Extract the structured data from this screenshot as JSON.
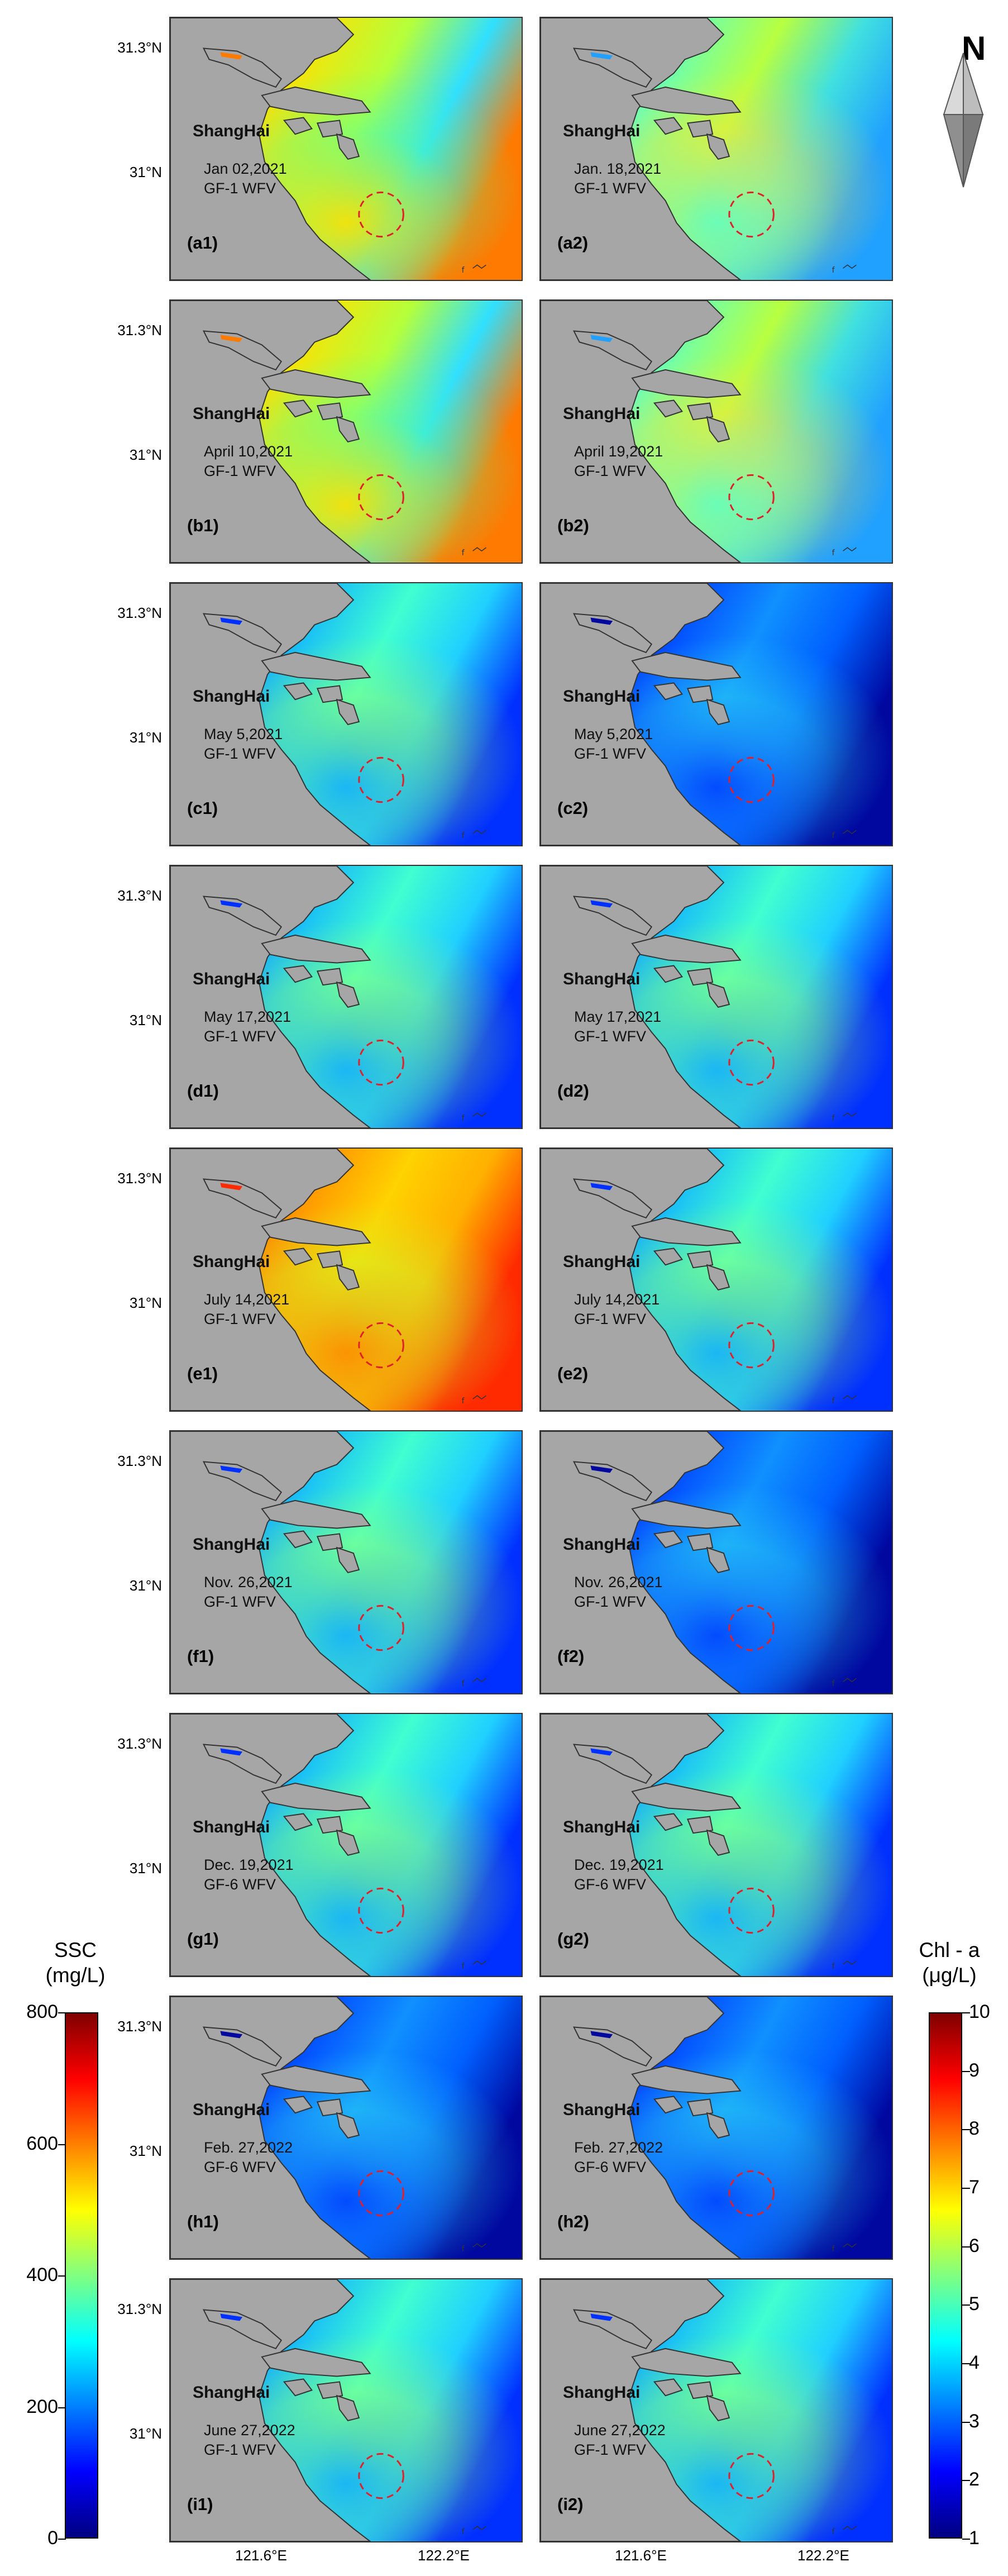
{
  "city_label": "ShangHai",
  "north_label": "N",
  "lat_labels": [
    "31.3°N",
    "31°N"
  ],
  "lon_labels": [
    "121.6°E",
    "122.2°E"
  ],
  "panels": [
    {
      "id": "a1",
      "label": "(a1)",
      "date": "Jan 02,2021",
      "sensor": "GF-1 WFV",
      "palette": "high"
    },
    {
      "id": "a2",
      "label": "(a2)",
      "date": "Jan. 18,2021",
      "sensor": "GF-1 WFV",
      "palette": "mid"
    },
    {
      "id": "b1",
      "label": "(b1)",
      "date": "April 10,2021",
      "sensor": "GF-1 WFV",
      "palette": "high"
    },
    {
      "id": "b2",
      "label": "(b2)",
      "date": "April 19,2021",
      "sensor": "GF-1 WFV",
      "palette": "mid"
    },
    {
      "id": "c1",
      "label": "(c1)",
      "date": "May 5,2021",
      "sensor": "GF-1 WFV",
      "palette": "low"
    },
    {
      "id": "c2",
      "label": "(c2)",
      "date": "May 5,2021",
      "sensor": "GF-1 WFV",
      "palette": "verylow"
    },
    {
      "id": "d1",
      "label": "(d1)",
      "date": "May 17,2021",
      "sensor": "GF-1 WFV",
      "palette": "low"
    },
    {
      "id": "d2",
      "label": "(d2)",
      "date": "May 17,2021",
      "sensor": "GF-1 WFV",
      "palette": "low"
    },
    {
      "id": "e1",
      "label": "(e1)",
      "date": "July 14,2021",
      "sensor": "GF-1 WFV",
      "palette": "veryhigh"
    },
    {
      "id": "e2",
      "label": "(e2)",
      "date": "July 14,2021",
      "sensor": "GF-1 WFV",
      "palette": "low"
    },
    {
      "id": "f1",
      "label": "(f1)",
      "date": "Nov. 26,2021",
      "sensor": "GF-1 WFV",
      "palette": "low"
    },
    {
      "id": "f2",
      "label": "(f2)",
      "date": "Nov. 26,2021",
      "sensor": "GF-1 WFV",
      "palette": "verylow"
    },
    {
      "id": "g1",
      "label": "(g1)",
      "date": "Dec. 19,2021",
      "sensor": "GF-6 WFV",
      "palette": "low"
    },
    {
      "id": "g2",
      "label": "(g2)",
      "date": "Dec. 19,2021",
      "sensor": "GF-6 WFV",
      "palette": "low"
    },
    {
      "id": "h1",
      "label": "(h1)",
      "date": "Feb. 27,2022",
      "sensor": "GF-6 WFV",
      "palette": "verylow"
    },
    {
      "id": "h2",
      "label": "(h2)",
      "date": "Feb. 27,2022",
      "sensor": "GF-6 WFV",
      "palette": "verylow"
    },
    {
      "id": "i1",
      "label": "(i1)",
      "date": "June 27,2022",
      "sensor": "GF-1 WFV",
      "palette": "low"
    },
    {
      "id": "i2",
      "label": "(i2)",
      "date": "June 27,2022",
      "sensor": "GF-1 WFV",
      "palette": "low"
    }
  ],
  "colorbars": {
    "ssc": {
      "title_line1": "SSC",
      "title_line2": "(mg/L)",
      "ticks": [
        "800",
        "600",
        "400",
        "200",
        "0"
      ],
      "min": 0,
      "max": 800
    },
    "chl": {
      "title_line1": "Chl - a",
      "title_line2": "(μg/L)",
      "ticks": [
        "10",
        "9",
        "8",
        "7",
        "6",
        "5",
        "4",
        "3",
        "2",
        "1"
      ],
      "min": 1,
      "max": 10
    }
  },
  "colors": {
    "land": "#a6a6a6",
    "circle": "#e0202a"
  }
}
